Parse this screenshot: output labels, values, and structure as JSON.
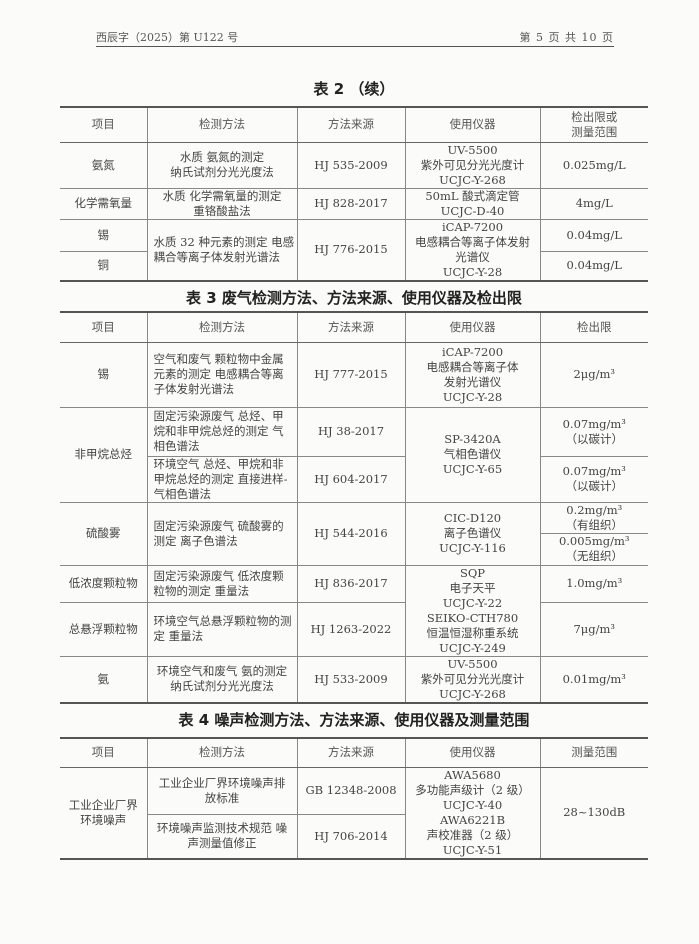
{
  "header": {
    "doc_no": "西辰字（2025）第 U122 号",
    "page": "第 5 页 共 10 页"
  },
  "table2": {
    "title": "表 2  （续）",
    "headers": [
      "项目",
      "检测方法",
      "方法来源",
      "使用仪器",
      "检出限或\n测量范围"
    ],
    "rows": [
      {
        "item": "氨氮",
        "method": "水质 氨氮的测定\n纳氏试剂分光光度法",
        "source": "HJ 535-2009",
        "instrument": "UV-5500\n紫外可见分光光度计\nUCJC-Y-268",
        "limit": "0.025mg/L"
      },
      {
        "item": "化学需氧量",
        "method": "水质 化学需氧量的测定\n重铬酸盐法",
        "source": "HJ 828-2017",
        "instrument": "50mL 酸式滴定管\nUCJC-D-40",
        "limit": "4mg/L"
      },
      {
        "item": "锡",
        "method": "水质 32 种元素的测定 电感耦合等离子体发射光谱法",
        "source": "HJ 776-2015",
        "instrument": "iCAP-7200\n电感耦合等离子体发射\n光谱仪\nUCJC-Y-28",
        "limit": "0.04mg/L"
      },
      {
        "item": "铜",
        "limit": "0.04mg/L"
      }
    ]
  },
  "table3": {
    "title": "表 3  废气检测方法、方法来源、使用仪器及检出限",
    "headers": [
      "项目",
      "检测方法",
      "方法来源",
      "使用仪器",
      "检出限"
    ],
    "rows": [
      {
        "item": "锡",
        "method": "空气和废气 颗粒物中金属元素的测定 电感耦合等离子体发射光谱法",
        "source": "HJ 777-2015",
        "instrument": "iCAP-7200\n电感耦合等离子体\n发射光谱仪\nUCJC-Y-28",
        "limit": "2μg/m³"
      },
      {
        "item": "非甲烷总烃",
        "method": "固定污染源废气 总烃、甲烷和非甲烷总烃的测定 气相色谱法",
        "source": "HJ 38-2017",
        "instrument": "SP-3420A\n气相色谱仪\nUCJC-Y-65",
        "limit": "0.07mg/m³\n（以碳计）"
      },
      {
        "method": "环境空气 总烃、甲烷和非甲烷总烃的测定 直接进样-气相色谱法",
        "source": "HJ 604-2017",
        "limit": "0.07mg/m³\n（以碳计）"
      },
      {
        "item": "硫酸雾",
        "method": "固定污染源废气 硫酸雾的测定 离子色谱法",
        "source": "HJ 544-2016",
        "instrument": "CIC-D120\n离子色谱仪\nUCJC-Y-116",
        "limit": "0.2mg/m³\n（有组织）",
        "limit2": "0.005mg/m³\n（无组织）"
      },
      {
        "item": "低浓度颗粒物",
        "method": "固定污染源废气 低浓度颗粒物的测定 重量法",
        "source": "HJ 836-2017",
        "instrument": "SQP\n电子天平\nUCJC-Y-22\nSEIKO-CTH780\n恒温恒湿称重系统\nUCJC-Y-249",
        "limit": "1.0mg/m³"
      },
      {
        "item": "总悬浮颗粒物",
        "method": "环境空气总悬浮颗粒物的测定 重量法",
        "source": "HJ 1263-2022",
        "limit": "7μg/m³"
      },
      {
        "item": "氨",
        "method": "环境空气和废气 氨的测定\n纳氏试剂分光光度法",
        "source": "HJ 533-2009",
        "instrument": "UV-5500\n紫外可见分光光度计\nUCJC-Y-268",
        "limit": "0.01mg/m³"
      }
    ]
  },
  "table4": {
    "title": "表 4  噪声检测方法、方法来源、使用仪器及测量范围",
    "headers": [
      "项目",
      "检测方法",
      "方法来源",
      "使用仪器",
      "测量范围"
    ],
    "rows": [
      {
        "item": "工业企业厂界\n环境噪声",
        "method": "工业企业厂界环境噪声排\n放标准",
        "source": "GB 12348-2008",
        "instrument": "AWA5680\n多功能声级计（2 级）\nUCJC-Y-40\nAWA6221B\n声校准器（2 级）\nUCJC-Y-51",
        "limit": "28~130dB"
      },
      {
        "method": "环境噪声监测技术规范 噪\n声测量值修正",
        "source": "HJ 706-2014"
      }
    ]
  }
}
